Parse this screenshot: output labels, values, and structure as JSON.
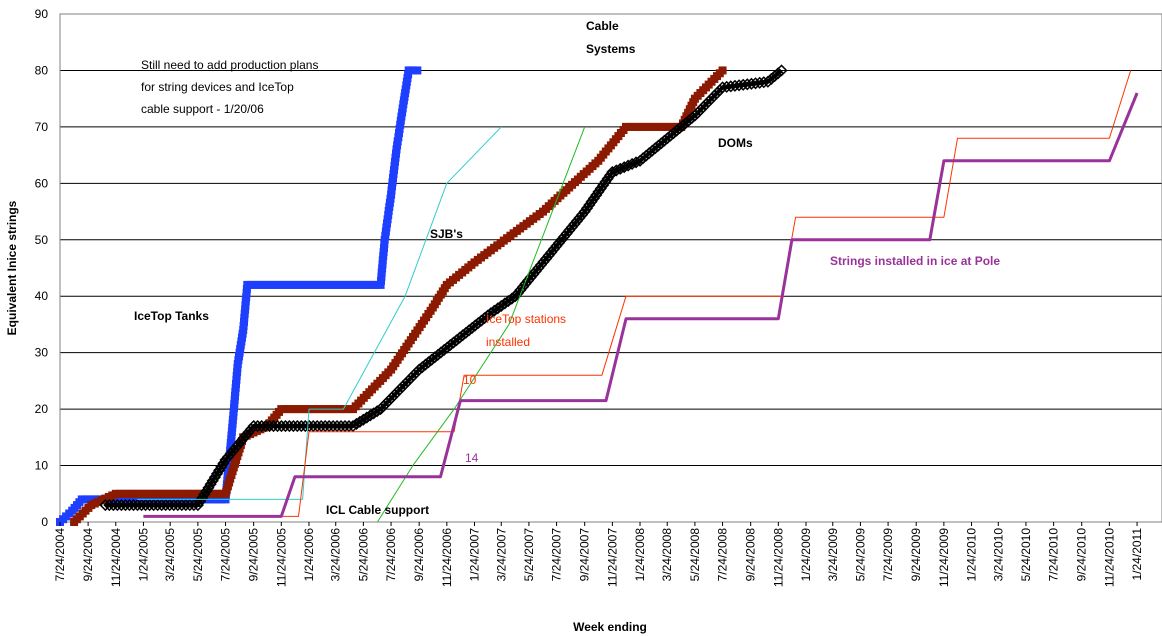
{
  "chart_data": {
    "type": "line",
    "title": "",
    "xlabel": "Week ending",
    "ylabel": "Equivalent Inice strings",
    "ylim": [
      0,
      90
    ],
    "yticks": [
      0,
      10,
      20,
      30,
      40,
      50,
      60,
      70,
      80,
      90
    ],
    "grid": "horizontal",
    "x_tick_labels": [
      "7/24/2004",
      "9/24/2004",
      "11/24/2004",
      "1/24/2005",
      "3/24/2005",
      "5/24/2005",
      "7/24/2005",
      "9/24/2005",
      "11/24/2005",
      "1/24/2006",
      "3/24/2006",
      "5/24/2006",
      "7/24/2006",
      "9/24/2006",
      "11/24/2006",
      "1/24/2007",
      "3/24/2007",
      "5/24/2007",
      "7/24/2007",
      "9/24/2007",
      "11/24/2007",
      "1/24/2008",
      "3/24/2008",
      "5/24/2008",
      "7/24/2008",
      "9/24/2008",
      "11/24/2008",
      "1/24/2009",
      "3/24/2009",
      "5/24/2009",
      "7/24/2009",
      "9/24/2009",
      "11/24/2009",
      "1/24/2010",
      "3/24/2010",
      "5/24/2010",
      "7/24/2010",
      "9/24/2010",
      "11/24/2010",
      "1/24/2011"
    ],
    "series": [
      {
        "color": "#1f3fff",
        "marker": "square",
        "width": 3,
        "points": [
          [
            "2004-07-24",
            0
          ],
          [
            "2004-08-20",
            2
          ],
          [
            "2004-09-10",
            4
          ],
          [
            "2005-07-24",
            4
          ],
          [
            "2005-07-31",
            10
          ],
          [
            "2005-08-07",
            16
          ],
          [
            "2005-08-20",
            28
          ],
          [
            "2005-09-01",
            34
          ],
          [
            "2005-09-10",
            42
          ],
          [
            "2006-07-01",
            42
          ],
          [
            "2006-07-10",
            50
          ],
          [
            "2006-07-24",
            58
          ],
          [
            "2006-08-05",
            66
          ],
          [
            "2006-08-20",
            74
          ],
          [
            "2006-09-01",
            80
          ],
          [
            "2006-09-20",
            80
          ]
        ]
      },
      {
        "color": "#8b1a00",
        "marker": "square",
        "width": 4,
        "points": [
          [
            "2004-08-24",
            0
          ],
          [
            "2004-10-01",
            3
          ],
          [
            "2004-11-24",
            5
          ],
          [
            "2005-07-24",
            5
          ],
          [
            "2005-09-01",
            15
          ],
          [
            "2005-10-24",
            17
          ],
          [
            "2005-11-24",
            20
          ],
          [
            "2006-05-01",
            20
          ],
          [
            "2006-07-24",
            27
          ],
          [
            "2006-10-24",
            38
          ],
          [
            "2006-11-24",
            42
          ],
          [
            "2007-01-24",
            46
          ],
          [
            "2007-06-24",
            55
          ],
          [
            "2007-10-24",
            64
          ],
          [
            "2007-12-24",
            70
          ],
          [
            "2008-04-24",
            70
          ],
          [
            "2008-05-24",
            75
          ],
          [
            "2008-07-24",
            80
          ]
        ]
      },
      {
        "color": "#000000",
        "marker": "diamond",
        "width": 4,
        "points": [
          [
            "2004-11-01",
            3
          ],
          [
            "2005-05-24",
            3
          ],
          [
            "2005-07-24",
            11
          ],
          [
            "2005-09-24",
            17
          ],
          [
            "2006-05-01",
            17
          ],
          [
            "2006-07-01",
            20
          ],
          [
            "2006-09-24",
            27
          ],
          [
            "2007-03-01",
            37
          ],
          [
            "2007-04-24",
            40
          ],
          [
            "2007-09-24",
            55
          ],
          [
            "2007-11-24",
            62
          ],
          [
            "2008-01-24",
            64
          ],
          [
            "2008-05-24",
            72
          ],
          [
            "2008-07-24",
            77
          ],
          [
            "2008-11-01",
            78
          ],
          [
            "2008-12-01",
            80
          ]
        ]
      },
      {
        "color": "#33cccc",
        "marker": "none",
        "width": 1,
        "points": [
          [
            "2005-01-10",
            4
          ],
          [
            "2006-01-10",
            4
          ],
          [
            "2006-01-24",
            20
          ],
          [
            "2006-04-10",
            20
          ],
          [
            "2006-08-24",
            40
          ],
          [
            "2006-11-24",
            60
          ],
          [
            "2007-03-24",
            70
          ]
        ]
      },
      {
        "color": "#22bb22",
        "marker": "none",
        "width": 1,
        "points": [
          [
            "2006-06-24",
            0
          ],
          [
            "2006-09-10",
            10
          ],
          [
            "2006-12-10",
            20
          ],
          [
            "2007-04-10",
            35
          ],
          [
            "2007-09-24",
            70
          ]
        ]
      },
      {
        "color": "#ff3300",
        "marker": "none",
        "width": 1,
        "points": [
          [
            "2005-01-24",
            1
          ],
          [
            "2006-01-01",
            1
          ],
          [
            "2006-01-24",
            16
          ],
          [
            "2006-12-10",
            16
          ],
          [
            "2007-01-01",
            26
          ],
          [
            "2007-11-01",
            26
          ],
          [
            "2007-12-24",
            40
          ],
          [
            "2008-12-01",
            40
          ],
          [
            "2009-01-01",
            54
          ],
          [
            "2009-11-24",
            54
          ],
          [
            "2009-12-24",
            68
          ],
          [
            "2010-11-24",
            68
          ],
          [
            "2011-01-10",
            80
          ]
        ]
      },
      {
        "color": "#993399",
        "marker": "none",
        "width": 3,
        "points": [
          [
            "2005-01-24",
            1
          ],
          [
            "2005-11-24",
            1
          ],
          [
            "2005-12-24",
            8
          ],
          [
            "2006-11-10",
            8
          ],
          [
            "2006-12-24",
            21.5
          ],
          [
            "2007-11-10",
            21.5
          ],
          [
            "2007-12-24",
            36
          ],
          [
            "2008-11-24",
            36
          ],
          [
            "2008-12-24",
            50
          ],
          [
            "2009-10-24",
            50
          ],
          [
            "2009-11-24",
            64
          ],
          [
            "2010-11-24",
            64
          ],
          [
            "2011-01-24",
            76
          ]
        ]
      }
    ],
    "annotations": [
      {
        "id": "note-line-1",
        "text": "Still need to add production plans",
        "color": "#000000",
        "bold": false
      },
      {
        "id": "note-line-2",
        "text": "for string devices and IceTop",
        "color": "#000000",
        "bold": false
      },
      {
        "id": "note-line-3",
        "text": "cable support - 1/20/06",
        "color": "#000000",
        "bold": false
      },
      {
        "id": "cable-systems-1",
        "text": "Cable",
        "color": "#000000",
        "bold": true
      },
      {
        "id": "cable-systems-2",
        "text": "Systems",
        "color": "#000000",
        "bold": true
      },
      {
        "id": "doms",
        "text": "DOMs",
        "color": "#000000",
        "bold": true
      },
      {
        "id": "sjbs",
        "text": "SJB's",
        "color": "#000000",
        "bold": true
      },
      {
        "id": "icetop-tanks",
        "text": "IceTop Tanks",
        "color": "#000000",
        "bold": true
      },
      {
        "id": "icetop-stations-1",
        "text": "IceTop stations",
        "color": "#ff3300",
        "bold": false
      },
      {
        "id": "icetop-stations-2",
        "text": "installed",
        "color": "#ff3300",
        "bold": false
      },
      {
        "id": "strings-installed",
        "text": "Strings installed in ice at Pole",
        "color": "#993399",
        "bold": true
      },
      {
        "id": "icl-cable",
        "text": "ICL Cable support",
        "color": "#000000",
        "bold": true
      },
      {
        "id": "label-10",
        "text": "10",
        "color": "#ff3300",
        "bold": false
      },
      {
        "id": "label-14",
        "text": "14",
        "color": "#993399",
        "bold": false
      }
    ]
  }
}
